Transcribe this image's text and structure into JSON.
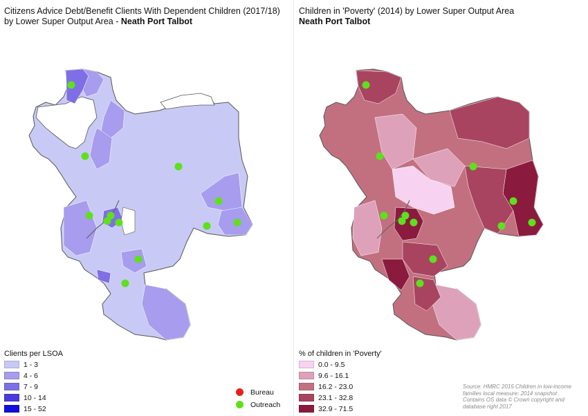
{
  "left_panel": {
    "title_line1": "Citizens Advice Debt/Benefit Clients With Dependent Children (2017/18)",
    "title_line2": "by Lower Super Output Area - ",
    "title_bold": "Neath Port Talbot",
    "legend_title": "Clients per LSOA",
    "legend": [
      {
        "label": "1 - 3",
        "color": "#c9c9f5"
      },
      {
        "label": "4 - 6",
        "color": "#a79ced"
      },
      {
        "label": "7 - 9",
        "color": "#7e6fe6"
      },
      {
        "label": "10 - 14",
        "color": "#4a39dc"
      },
      {
        "label": "15 - 52",
        "color": "#1010d8"
      }
    ]
  },
  "right_panel": {
    "title_line1": "Children in 'Poverty' (2014) by Lower Super Output Area",
    "title_bold": "Neath Port Talbot",
    "legend_title": "% of children in 'Poverty'",
    "legend": [
      {
        "label": "0.0 - 9.5",
        "color": "#f7d3f1"
      },
      {
        "label": "9.6 - 16.1",
        "color": "#dea1ba"
      },
      {
        "label": "16.2 - 23.0",
        "color": "#c2707f"
      },
      {
        "label": "23.1 - 32.8",
        "color": "#a84460"
      },
      {
        "label": "32.9 - 71.5",
        "color": "#8b1a3f"
      }
    ]
  },
  "point_legend": [
    {
      "label": "Bureau",
      "color": "#e8201c"
    },
    {
      "label": "Outreach",
      "color": "#5ee01c"
    }
  ],
  "source_text": "Source: HMRC 2015 Children in low-income families local measure: 2014 snapshot . Contains OS data © Crown copyright and database right 2017"
}
